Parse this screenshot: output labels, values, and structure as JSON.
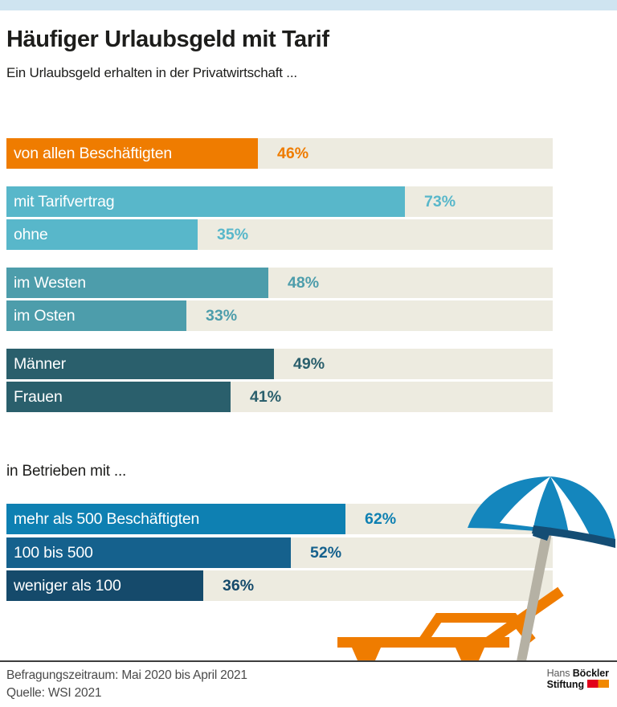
{
  "chart_data": {
    "type": "bar",
    "orientation": "horizontal",
    "title": "Häufiger Urlaubsgeld mit Tarif",
    "subtitle": "Ein Urlaubsgeld erhalten in der Privatwirtschaft ...",
    "value_unit": "%",
    "xlim": [
      0,
      100
    ],
    "grid": false,
    "legend": false,
    "track_color": "#edebe0",
    "groups": [
      {
        "name": "gesamt",
        "bars": [
          {
            "label": "von allen Beschäftigten",
            "value": 46,
            "color": "#ef7c00"
          }
        ]
      },
      {
        "name": "tarifbindung",
        "bars": [
          {
            "label": "mit Tarifvertrag",
            "value": 73,
            "color": "#58b7ca"
          },
          {
            "label": "ohne",
            "value": 35,
            "color": "#58b7ca"
          }
        ]
      },
      {
        "name": "region",
        "bars": [
          {
            "label": "im Westen",
            "value": 48,
            "color": "#4d9dab"
          },
          {
            "label": "im Osten",
            "value": 33,
            "color": "#4d9dab"
          }
        ]
      },
      {
        "name": "geschlecht",
        "bars": [
          {
            "label": "Männer",
            "value": 49,
            "color": "#2a5f6c"
          },
          {
            "label": "Frauen",
            "value": 41,
            "color": "#2a5f6c"
          }
        ]
      }
    ],
    "section2": {
      "heading": "in Betrieben mit ...",
      "bars": [
        {
          "label": "mehr als 500 Beschäftigten",
          "value": 62,
          "color": "#0e80b2"
        },
        {
          "label": "100 bis 500",
          "value": 52,
          "color": "#15618d"
        },
        {
          "label": "weniger als 100",
          "value": 36,
          "color": "#154a6b"
        }
      ]
    }
  },
  "footer": {
    "line1": "Befragungszeitraum: Mai 2020 bis April 2021",
    "line2": "Quelle: WSI 2021"
  },
  "logo": {
    "line1_light": "Hans",
    "line1_bold": "Böckler",
    "line2_bold": "Stiftung",
    "flag_colors": [
      "#e2001a",
      "#f18800"
    ]
  },
  "illustration": {
    "name": "beach-umbrella-and-lounger",
    "umbrella_blue": "#1486bd",
    "umbrella_rim_navy": "#144d74",
    "panel_white": "#ffffff",
    "pole_color": "#b5b1a4",
    "lounger_orange": "#ef7c00"
  },
  "theme": {
    "top_strip": "#cfe4f0",
    "background": "#ffffff",
    "text": "#1d1d1b",
    "footer_text": "#4a4a4a",
    "separator": "#3d3d3d"
  }
}
